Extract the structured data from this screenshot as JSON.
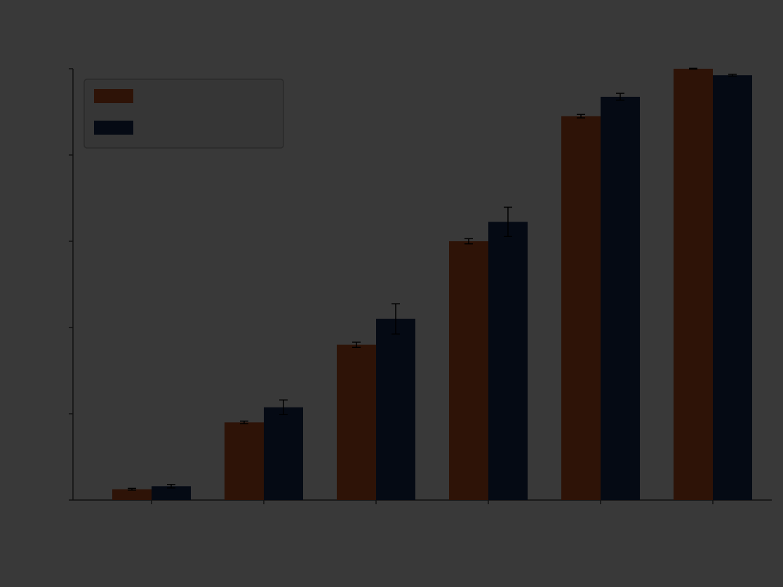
{
  "chart_data": {
    "type": "bar",
    "title": "",
    "xlabel": "",
    "ylabel": "",
    "categories": [
      "",
      "",
      "",
      "",
      "",
      ""
    ],
    "ylim": [
      0,
      1.0
    ],
    "yticks": [
      0.0,
      0.2,
      0.4,
      0.6,
      0.8,
      1.0
    ],
    "ytick_labels": [
      "",
      "",
      "",
      "",
      "",
      ""
    ],
    "grid": false,
    "legend_placement": "top-left",
    "series": [
      {
        "name": "",
        "color": "#2e1307",
        "values": [
          0.025,
          0.18,
          0.36,
          0.6,
          0.89,
          1.0
        ],
        "errors": [
          0.002,
          0.003,
          0.006,
          0.006,
          0.004,
          0.001
        ]
      },
      {
        "name": "",
        "color": "#050a14",
        "values": [
          0.032,
          0.215,
          0.42,
          0.645,
          0.935,
          0.985
        ],
        "errors": [
          0.004,
          0.017,
          0.035,
          0.034,
          0.008,
          0.002
        ]
      }
    ]
  }
}
